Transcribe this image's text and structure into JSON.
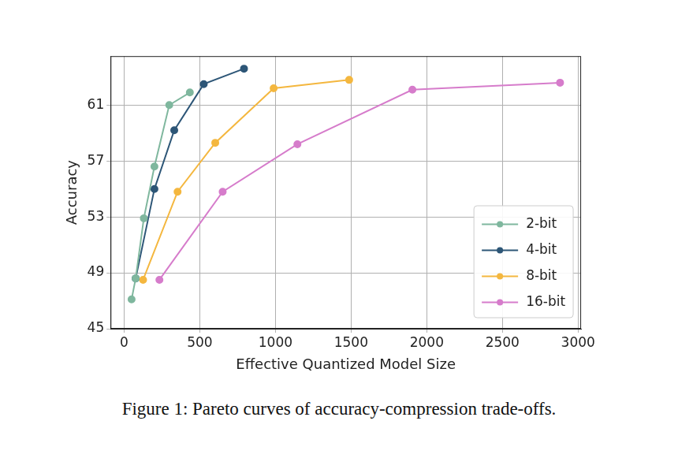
{
  "chart_data": {
    "type": "line",
    "x_label": "Effective Quantized Model Size",
    "y_label": "Accuracy",
    "series": [
      {
        "name": "2-bit",
        "color": "#7fb79e",
        "x": [
          49,
          76,
          130,
          200,
          298,
          434
        ],
        "values": [
          47.1,
          48.6,
          52.9,
          56.6,
          61.0,
          61.9
        ]
      },
      {
        "name": "4-bit",
        "color": "#2d5677",
        "x": [
          76,
          200,
          331,
          526,
          792
        ],
        "values": [
          48.6,
          55.0,
          59.2,
          62.5,
          63.6
        ]
      },
      {
        "name": "8-bit",
        "color": "#f4b73f",
        "x": [
          125,
          353,
          602,
          988,
          1487
        ],
        "values": [
          48.5,
          54.8,
          58.3,
          62.2,
          62.8
        ]
      },
      {
        "name": "16-bit",
        "color": "#d67ccb",
        "x": [
          233,
          651,
          1145,
          1905,
          2881
        ],
        "values": [
          48.5,
          54.8,
          58.2,
          62.1,
          62.6
        ]
      }
    ],
    "xlim": [
      -90,
      3020
    ],
    "xticks": [
      0,
      500,
      1000,
      1500,
      2000,
      2500,
      3000
    ],
    "ylim": [
      45,
      64.5
    ],
    "yticks": [
      45,
      49,
      53,
      57,
      61
    ],
    "grid": true,
    "legend": "lower right",
    "marker": "circle"
  },
  "caption": "Figure 1: Pareto curves of accuracy-compression trade-offs."
}
